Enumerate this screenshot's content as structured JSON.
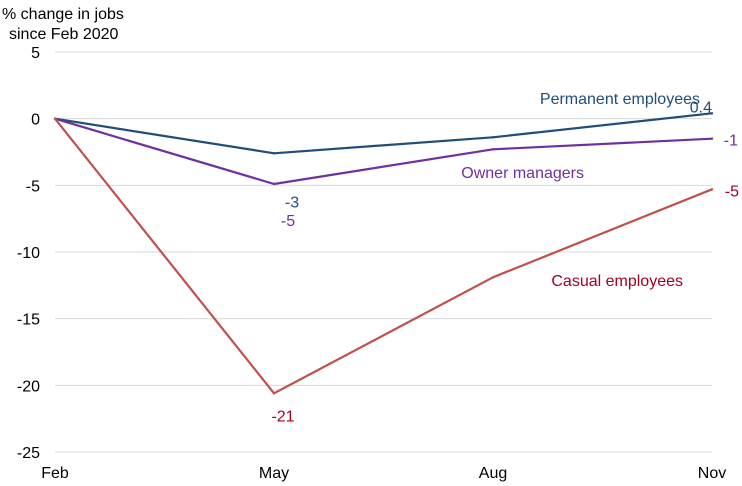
{
  "chart_data": {
    "type": "line",
    "ylabel": [
      "% change in jobs",
      "since Feb 2020"
    ],
    "categories": [
      "Feb",
      "May",
      "Aug",
      "Nov"
    ],
    "y_ticks": [
      "5",
      "0",
      "-5",
      "-10",
      "-15",
      "-20",
      "-25"
    ],
    "ylim": [
      -25,
      5
    ],
    "grid": true,
    "series": [
      {
        "name": "Permanent employees",
        "color": "#1f4e79",
        "values": [
          0,
          -2.6,
          -1.4,
          0.4
        ],
        "labels": [
          "",
          "-3",
          "",
          "0.4"
        ]
      },
      {
        "name": "Owner managers",
        "color": "#7030a0",
        "values": [
          0,
          -4.9,
          -2.3,
          -1.5
        ],
        "labels": [
          "",
          "-5",
          "",
          "-1"
        ]
      },
      {
        "name": "Casual employees",
        "color": "#c0504d",
        "text_color": "#a50021",
        "values": [
          0,
          -20.6,
          -11.9,
          -5.3
        ],
        "labels": [
          "",
          "-21",
          "",
          "-5"
        ]
      }
    ]
  }
}
